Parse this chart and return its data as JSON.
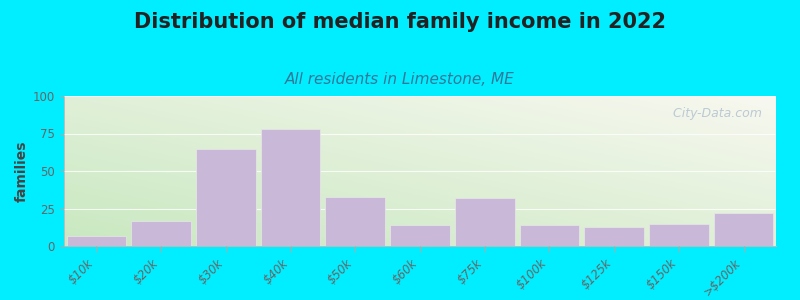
{
  "title": "Distribution of median family income in 2022",
  "subtitle": "All residents in Limestone, ME",
  "ylabel": "families",
  "categories": [
    "$10k",
    "$20k",
    "$30k",
    "$40k",
    "$50k",
    "$60k",
    "$75k",
    "$100k",
    "$125k",
    "$150k",
    ">$200k"
  ],
  "values": [
    7,
    17,
    65,
    78,
    33,
    14,
    32,
    14,
    13,
    15,
    22
  ],
  "bar_color": "#c9b8d8",
  "bar_edge_color": "#e8e8e8",
  "background_outer": "#00eeff",
  "gradient_left_bottom": "#c8e8c0",
  "gradient_right_top": "#f8f8f0",
  "ylim": [
    0,
    100
  ],
  "yticks": [
    0,
    25,
    50,
    75,
    100
  ],
  "title_fontsize": 15,
  "subtitle_fontsize": 11,
  "ylabel_fontsize": 10,
  "tick_fontsize": 8.5,
  "watermark_text": "  City-Data.com",
  "watermark_color": "#aabbcc"
}
